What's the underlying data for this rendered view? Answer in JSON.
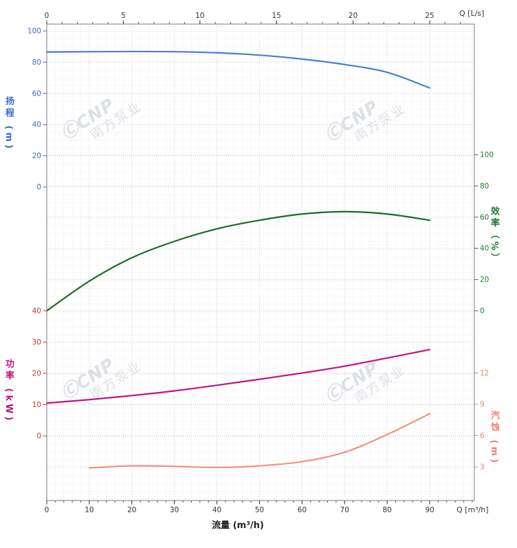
{
  "watermark": {
    "logo": "ⒸCNP",
    "text": "南方泵业"
  },
  "chart_data": {
    "type": "line",
    "title": "",
    "x_bottom": {
      "axis_title": "流量 (m³/h)",
      "end_label": "Q [m³/h]",
      "ticks": [
        0,
        10,
        20,
        30,
        40,
        50,
        60,
        70,
        80,
        90
      ],
      "range": [
        0,
        100.5
      ],
      "minor_step": 2
    },
    "x_top": {
      "end_label": "Q [L/s]",
      "ticks": [
        0,
        5,
        10,
        15,
        20,
        25
      ],
      "range": [
        0,
        27.9
      ],
      "minor_step": 1
    },
    "y_axes": [
      {
        "id": "head",
        "title": "扬程 (m)",
        "side": "left",
        "tick_color": "#3a6cc8",
        "title_color": "#3a6cc8",
        "ticks": [
          100,
          80,
          60,
          40,
          20,
          0
        ]
      },
      {
        "id": "efficiency",
        "title": "效率（%）",
        "side": "right",
        "tick_color": "#1e7a33",
        "title_color": "#1e7a33",
        "ticks": [
          100,
          80,
          60,
          40,
          20,
          0
        ]
      },
      {
        "id": "power",
        "title": "功率 (kW)",
        "side": "left",
        "tick_color": "#cc3333",
        "title_color": "#c1137f",
        "ticks": [
          40,
          30,
          20,
          10,
          0
        ]
      },
      {
        "id": "npsh",
        "title": "汽蚀 (m)",
        "side": "right",
        "tick_color": "#f08070",
        "title_color": "#f08070",
        "ticks": [
          12,
          9,
          6,
          3
        ]
      }
    ],
    "series": [
      {
        "name": "head",
        "axis": "head",
        "color": "#4a7bd4",
        "points": [
          [
            0,
            86.5
          ],
          [
            10,
            86.7
          ],
          [
            20,
            86.8
          ],
          [
            30,
            86.7
          ],
          [
            40,
            86
          ],
          [
            50,
            84.5
          ],
          [
            60,
            82
          ],
          [
            70,
            78.5
          ],
          [
            80,
            73.5
          ],
          [
            90,
            63.5
          ]
        ]
      },
      {
        "name": "efficiency",
        "axis": "efficiency",
        "color": "#166b2b",
        "points": [
          [
            0,
            0
          ],
          [
            10,
            19
          ],
          [
            20,
            34
          ],
          [
            30,
            44.5
          ],
          [
            40,
            52.5
          ],
          [
            50,
            58
          ],
          [
            60,
            62
          ],
          [
            70,
            63.5
          ],
          [
            80,
            62
          ],
          [
            90,
            58
          ]
        ]
      },
      {
        "name": "power",
        "axis": "power",
        "color": "#c1137f",
        "points": [
          [
            0,
            10.5
          ],
          [
            10,
            11.6
          ],
          [
            20,
            12.9
          ],
          [
            30,
            14.4
          ],
          [
            40,
            16.2
          ],
          [
            50,
            18.1
          ],
          [
            60,
            20.1
          ],
          [
            70,
            22.3
          ],
          [
            80,
            24.9
          ],
          [
            90,
            27.6
          ]
        ]
      },
      {
        "name": "npsh",
        "axis": "npsh",
        "color": "#f5917f",
        "points": [
          [
            10,
            2.9
          ],
          [
            20,
            3.1
          ],
          [
            30,
            3.05
          ],
          [
            40,
            2.95
          ],
          [
            50,
            3.1
          ],
          [
            60,
            3.5
          ],
          [
            70,
            4.4
          ],
          [
            80,
            6.1
          ],
          [
            90,
            8.1
          ]
        ]
      }
    ]
  }
}
